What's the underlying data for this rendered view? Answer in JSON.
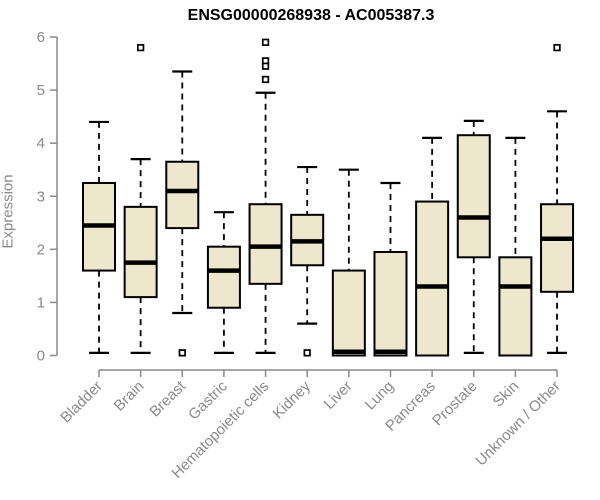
{
  "chart_data": {
    "type": "boxplot",
    "title": "ENSG00000268938 - AC005387.3",
    "xlabel": "",
    "ylabel": "Expression",
    "ylim": [
      0,
      6
    ],
    "yticks": [
      0,
      1,
      2,
      3,
      4,
      5,
      6
    ],
    "grid": false,
    "legend": "none",
    "colors": {
      "box_fill": "#EDE8CD",
      "box_border": "#000000",
      "whisker": "#000000",
      "axis": "#8A8A8A",
      "title_text": "#000000"
    },
    "categories": [
      "Bladder",
      "Brain",
      "Breast",
      "Gastric",
      "Hematopoietic cells",
      "Kidney",
      "Liver",
      "Lung",
      "Pancreas",
      "Prostate",
      "Skin",
      "Unknown / Other"
    ],
    "series": [
      {
        "category": "Bladder",
        "whisker_low": 0.05,
        "q1": 1.6,
        "median": 2.45,
        "q3": 3.25,
        "whisker_high": 4.4,
        "outliers": []
      },
      {
        "category": "Brain",
        "whisker_low": 0.05,
        "q1": 1.1,
        "median": 1.75,
        "q3": 2.8,
        "whisker_high": 3.7,
        "outliers": [
          5.8
        ]
      },
      {
        "category": "Breast",
        "whisker_low": 0.8,
        "q1": 2.4,
        "median": 3.1,
        "q3": 3.65,
        "whisker_high": 5.35,
        "outliers": [
          0.05
        ]
      },
      {
        "category": "Gastric",
        "whisker_low": 0.05,
        "q1": 0.9,
        "median": 1.6,
        "q3": 2.05,
        "whisker_high": 2.7,
        "outliers": []
      },
      {
        "category": "Hematopoietic cells",
        "whisker_low": 0.05,
        "q1": 1.35,
        "median": 2.05,
        "q3": 2.85,
        "whisker_high": 4.95,
        "outliers": [
          5.9,
          5.55,
          5.45,
          5.2
        ]
      },
      {
        "category": "Kidney",
        "whisker_low": 0.6,
        "q1": 1.7,
        "median": 2.15,
        "q3": 2.65,
        "whisker_high": 3.55,
        "outliers": [
          0.05
        ]
      },
      {
        "category": "Liver",
        "whisker_low": 0.0,
        "q1": 0.0,
        "median": 0.07,
        "q3": 1.6,
        "whisker_high": 3.5,
        "outliers": []
      },
      {
        "category": "Lung",
        "whisker_low": 0.0,
        "q1": 0.0,
        "median": 0.07,
        "q3": 1.95,
        "whisker_high": 3.25,
        "outliers": []
      },
      {
        "category": "Pancreas",
        "whisker_low": 0.0,
        "q1": 0.0,
        "median": 1.3,
        "q3": 2.9,
        "whisker_high": 4.1,
        "outliers": []
      },
      {
        "category": "Prostate",
        "whisker_low": 0.05,
        "q1": 1.85,
        "median": 2.6,
        "q3": 4.15,
        "whisker_high": 4.42,
        "outliers": []
      },
      {
        "category": "Skin",
        "whisker_low": 0.0,
        "q1": 0.0,
        "median": 1.3,
        "q3": 1.85,
        "whisker_high": 4.1,
        "outliers": []
      },
      {
        "category": "Unknown / Other",
        "whisker_low": 0.05,
        "q1": 1.2,
        "median": 2.2,
        "q3": 2.85,
        "whisker_high": 4.6,
        "outliers": [
          5.8
        ]
      }
    ]
  }
}
